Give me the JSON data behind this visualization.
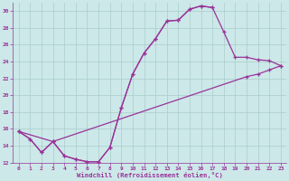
{
  "bg_color": "#cce8e8",
  "grid_color": "#aacccc",
  "line_color": "#993399",
  "xlabel": "Windchill (Refroidissement éolien,°C)",
  "xlabel_color": "#993399",
  "tick_color": "#993399",
  "xlim": [
    -0.5,
    23.5
  ],
  "ylim": [
    12,
    31
  ],
  "yticks": [
    12,
    14,
    16,
    18,
    20,
    22,
    24,
    26,
    28,
    30
  ],
  "xticks": [
    0,
    1,
    2,
    3,
    4,
    5,
    6,
    7,
    8,
    9,
    10,
    11,
    12,
    13,
    14,
    15,
    16,
    17,
    18,
    19,
    20,
    21,
    22,
    23
  ],
  "curve1_x": [
    0,
    1,
    2,
    3,
    4,
    5,
    6,
    7,
    8,
    9,
    10,
    11,
    12,
    13,
    14,
    15,
    16,
    17
  ],
  "curve1_y": [
    15.7,
    14.8,
    13.2,
    14.5,
    12.8,
    12.4,
    12.1,
    12.1,
    13.8,
    18.5,
    22.5,
    25.0,
    26.7,
    28.8,
    28.9,
    30.2,
    30.6,
    30.4
  ],
  "curve2_x": [
    0,
    3,
    20,
    21,
    22,
    23
  ],
  "curve2_y": [
    15.7,
    14.5,
    22.2,
    22.5,
    23.0,
    23.5
  ],
  "curve3_x": [
    0,
    1,
    2,
    3,
    4,
    5,
    6,
    7,
    8,
    9,
    10,
    11,
    12,
    13,
    14,
    15,
    16,
    17,
    18,
    19,
    20,
    21,
    22,
    23
  ],
  "curve3_y": [
    15.7,
    14.8,
    13.2,
    14.5,
    12.8,
    12.4,
    12.1,
    12.1,
    13.8,
    18.5,
    22.5,
    25.0,
    26.7,
    28.8,
    28.9,
    30.2,
    30.6,
    30.4,
    27.5,
    24.5,
    24.5,
    24.2,
    24.1,
    23.5
  ]
}
